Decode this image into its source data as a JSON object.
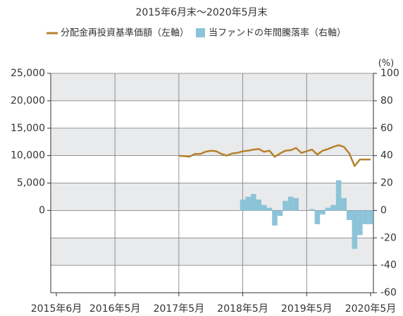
{
  "chart_data": {
    "type": "bar",
    "title": "2015年6月末〜2020年5月末",
    "y2_unit": "(%)",
    "categories": [
      "2015年6月",
      null,
      null,
      null,
      null,
      null,
      null,
      null,
      null,
      null,
      null,
      "2016年5月",
      null,
      null,
      null,
      null,
      null,
      null,
      null,
      null,
      null,
      null,
      null,
      "2017年5月",
      null,
      null,
      null,
      null,
      null,
      null,
      null,
      null,
      null,
      null,
      null,
      "2018年5月",
      null,
      null,
      null,
      null,
      null,
      null,
      null,
      null,
      null,
      null,
      null,
      "2019年5月",
      null,
      null,
      null,
      null,
      null,
      null,
      null,
      null,
      null,
      null,
      null,
      "2020年5月"
    ],
    "series": [
      {
        "name": "分配金再投資基準価額（左軸）",
        "type": "line",
        "color": "#b5822a",
        "values": [
          null,
          null,
          null,
          null,
          null,
          null,
          null,
          null,
          null,
          null,
          null,
          null,
          null,
          null,
          null,
          null,
          null,
          null,
          null,
          null,
          null,
          null,
          null,
          9950,
          9900,
          9800,
          10300,
          10300,
          10700,
          10900,
          10800,
          10300,
          10000,
          10400,
          10500,
          10800,
          10900,
          11100,
          11200,
          10700,
          10900,
          9800,
          10400,
          10900,
          11000,
          11400,
          10500,
          10800,
          11100,
          10200,
          10900,
          11200,
          11600,
          11900,
          11600,
          10400,
          8100,
          9300,
          9300,
          9300
        ]
      },
      {
        "name": "当ファンドの年間騰落率（右軸）",
        "type": "bar",
        "axis": "y2",
        "color": "#8cc3d8",
        "values": [
          null,
          null,
          null,
          null,
          null,
          null,
          null,
          null,
          null,
          null,
          null,
          null,
          null,
          null,
          null,
          null,
          null,
          null,
          null,
          null,
          null,
          null,
          null,
          null,
          null,
          null,
          null,
          null,
          null,
          null,
          null,
          null,
          null,
          null,
          null,
          8,
          10,
          12,
          8,
          4,
          2,
          -11,
          -4,
          7,
          10,
          9,
          0,
          0,
          1,
          -10,
          -3,
          2,
          4,
          22,
          9,
          -7,
          -28,
          -18,
          -10,
          -10
        ]
      }
    ],
    "ylim": [
      -15000,
      25000
    ],
    "yticks": [
      0,
      {
        "value": 5000,
        "label": "5,000"
      },
      {
        "value": 10000,
        "label": "10,000"
      },
      {
        "value": 15000,
        "label": "15,000"
      },
      {
        "value": 20000,
        "label": "20,000"
      },
      {
        "value": 25000,
        "label": "25,000"
      }
    ],
    "y2lim": [
      -60,
      100
    ],
    "y2ticks": [
      -60,
      -40,
      -20,
      0,
      20,
      40,
      60,
      80,
      100
    ]
  }
}
